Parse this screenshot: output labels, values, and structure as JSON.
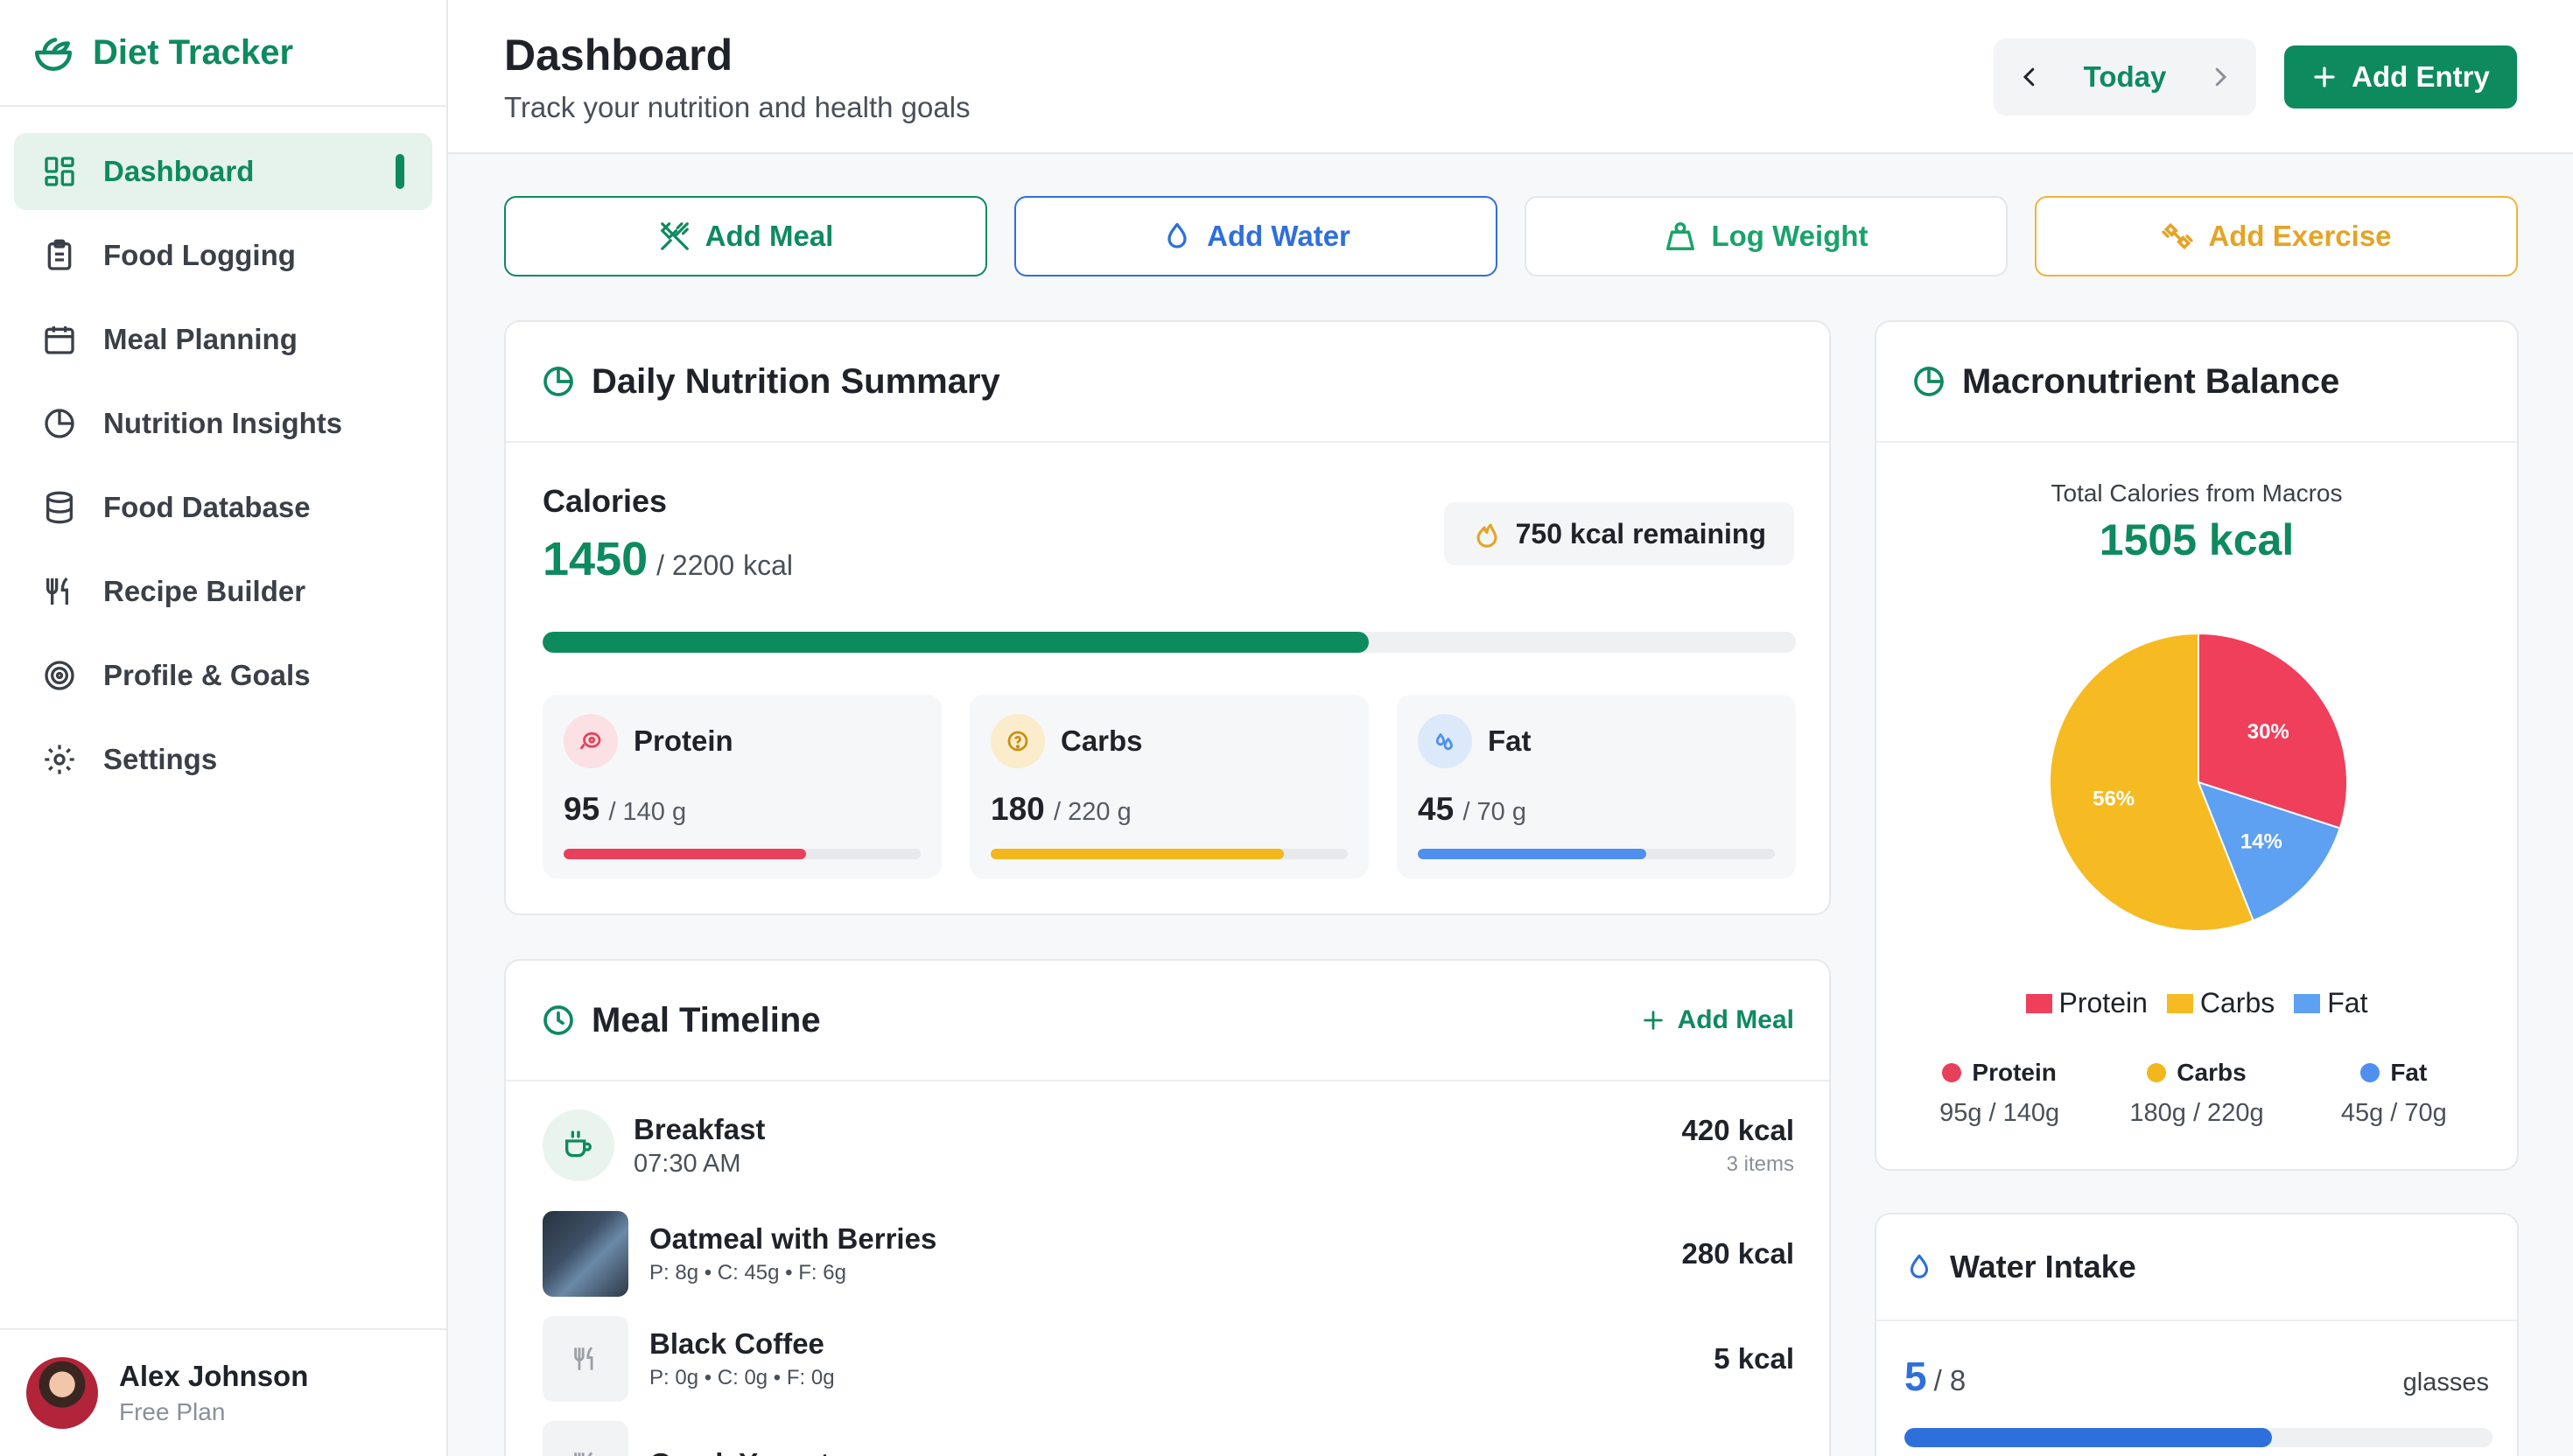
{
  "app": {
    "name": "Diet Tracker",
    "brand_color": "#0e8a5f"
  },
  "sidebar": {
    "items": [
      {
        "label": "Dashboard",
        "icon": "grid-icon",
        "active": true
      },
      {
        "label": "Food Logging",
        "icon": "clipboard-icon"
      },
      {
        "label": "Meal Planning",
        "icon": "calendar-icon"
      },
      {
        "label": "Nutrition Insights",
        "icon": "pie-chart-icon"
      },
      {
        "label": "Food Database",
        "icon": "database-icon"
      },
      {
        "label": "Recipe Builder",
        "icon": "utensils-icon"
      },
      {
        "label": "Profile & Goals",
        "icon": "target-icon"
      },
      {
        "label": "Settings",
        "icon": "gear-icon"
      }
    ]
  },
  "user": {
    "name": "Alex Johnson",
    "plan": "Free Plan"
  },
  "header": {
    "title": "Dashboard",
    "subtitle": "Track your nutrition and health goals",
    "date_label": "Today",
    "add_entry_label": "Add Entry"
  },
  "quick_actions": {
    "meal": "Add Meal",
    "water": "Add Water",
    "weight": "Log Weight",
    "exercise": "Add Exercise"
  },
  "summary": {
    "title": "Daily Nutrition Summary",
    "calories_label": "Calories",
    "calories_value": "1450",
    "calories_goal": "/ 2200",
    "calories_unit": "kcal",
    "remaining": "750 kcal remaining",
    "calories_progress": 0.659,
    "macros": {
      "protein": {
        "name": "Protein",
        "value": "95",
        "goal": "/ 140 g",
        "progress": 0.68,
        "color": "#e8405a"
      },
      "carbs": {
        "name": "Carbs",
        "value": "180",
        "goal": "/ 220 g",
        "progress": 0.82,
        "color": "#f2b71d"
      },
      "fat": {
        "name": "Fat",
        "value": "45",
        "goal": "/ 70 g",
        "progress": 0.64,
        "color": "#4f8ff0"
      }
    }
  },
  "timeline": {
    "title": "Meal Timeline",
    "add_label": "Add Meal",
    "meal": {
      "name": "Breakfast",
      "time": "07:30 AM",
      "kcal": "420 kcal",
      "items": "3 items"
    },
    "foods": [
      {
        "name": "Oatmeal with Berries",
        "macros": "P: 8g • C: 45g • F: 6g",
        "kcal": "280 kcal"
      },
      {
        "name": "Black Coffee",
        "macros": "P: 0g • C: 0g • F: 0g",
        "kcal": "5 kcal"
      },
      {
        "name": "Greek Yogurt",
        "macros": "",
        "kcal": ""
      }
    ]
  },
  "macro_balance": {
    "title": "Macronutrient Balance",
    "subtitle": "Total Calories from Macros",
    "total": "1505 kcal",
    "stats": [
      {
        "name": "Protein",
        "value": "95g / 140g"
      },
      {
        "name": "Carbs",
        "value": "180g / 220g"
      },
      {
        "name": "Fat",
        "value": "45g / 70g"
      }
    ]
  },
  "chart_data": {
    "type": "pie",
    "categories": [
      "Protein",
      "Carbs",
      "Fat"
    ],
    "values": [
      30,
      56,
      14
    ],
    "labels": [
      "30%",
      "56%",
      "14%"
    ],
    "colors": [
      "#ef3f5b",
      "#f6bb22",
      "#5ea0f2"
    ],
    "legend_position": "bottom"
  },
  "water": {
    "title": "Water Intake",
    "value": "5",
    "goal": "/ 8",
    "unit": "glasses",
    "progress": 0.625
  }
}
